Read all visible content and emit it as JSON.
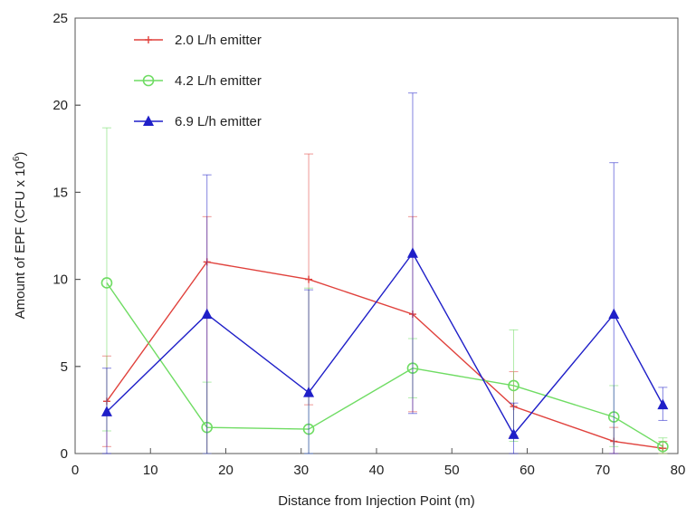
{
  "chart_data": {
    "type": "line",
    "xlabel": "Distance from Injection Point (m)",
    "ylabel": "Amount of EPF (CFU x 10",
    "ylabel_sup": "6",
    "ylabel_end": ")",
    "xlim": [
      0,
      80
    ],
    "ylim": [
      0,
      25
    ],
    "xticks": [
      0,
      10,
      20,
      30,
      40,
      50,
      60,
      70,
      80
    ],
    "yticks": [
      0,
      5,
      10,
      15,
      20,
      25
    ],
    "grid": false,
    "legend_position": "top-left",
    "series": [
      {
        "name": "2.0 L/h emitter",
        "color": "#e0413c",
        "marker": "plus",
        "points": [
          {
            "x": 4.2,
            "y": 3.0,
            "lo": 0.4,
            "hi": 5.6
          },
          {
            "x": 17.5,
            "y": 11.0,
            "lo": 0.0,
            "hi": 13.6
          },
          {
            "x": 31.0,
            "y": 10.0,
            "lo": 2.8,
            "hi": 17.2
          },
          {
            "x": 44.8,
            "y": 8.0,
            "lo": 2.4,
            "hi": 13.6
          },
          {
            "x": 58.2,
            "y": 2.7,
            "lo": 1.0,
            "hi": 4.7
          },
          {
            "x": 71.5,
            "y": 0.7,
            "lo": 0.0,
            "hi": 1.5
          },
          {
            "x": 78.0,
            "y": 0.3,
            "lo": 0.0,
            "hi": 0.7
          }
        ]
      },
      {
        "name": "4.2 L/h emitter",
        "color": "#6fdc63",
        "marker": "circle",
        "points": [
          {
            "x": 4.2,
            "y": 9.8,
            "lo": 1.3,
            "hi": 18.7
          },
          {
            "x": 17.5,
            "y": 1.5,
            "lo": 0.0,
            "hi": 4.1
          },
          {
            "x": 31.0,
            "y": 1.4,
            "lo": 0.0,
            "hi": 9.5
          },
          {
            "x": 44.8,
            "y": 4.9,
            "lo": 3.2,
            "hi": 6.6
          },
          {
            "x": 58.2,
            "y": 3.9,
            "lo": 0.7,
            "hi": 7.1
          },
          {
            "x": 71.5,
            "y": 2.1,
            "lo": 0.4,
            "hi": 3.9
          },
          {
            "x": 78.0,
            "y": 0.4,
            "lo": 0.0,
            "hi": 0.9
          }
        ]
      },
      {
        "name": "6.9 L/h emitter",
        "color": "#1f1fc8",
        "marker": "triangle",
        "points": [
          {
            "x": 4.2,
            "y": 2.4,
            "lo": 0.0,
            "hi": 4.9
          },
          {
            "x": 17.5,
            "y": 8.0,
            "lo": 0.0,
            "hi": 16.0
          },
          {
            "x": 31.0,
            "y": 3.5,
            "lo": 0.0,
            "hi": 9.4
          },
          {
            "x": 44.8,
            "y": 11.5,
            "lo": 2.3,
            "hi": 20.7
          },
          {
            "x": 58.2,
            "y": 1.1,
            "lo": 0.0,
            "hi": 2.9
          },
          {
            "x": 71.5,
            "y": 8.0,
            "lo": 0.0,
            "hi": 16.7
          },
          {
            "x": 78.0,
            "y": 2.8,
            "lo": 1.9,
            "hi": 3.8
          }
        ]
      }
    ]
  }
}
